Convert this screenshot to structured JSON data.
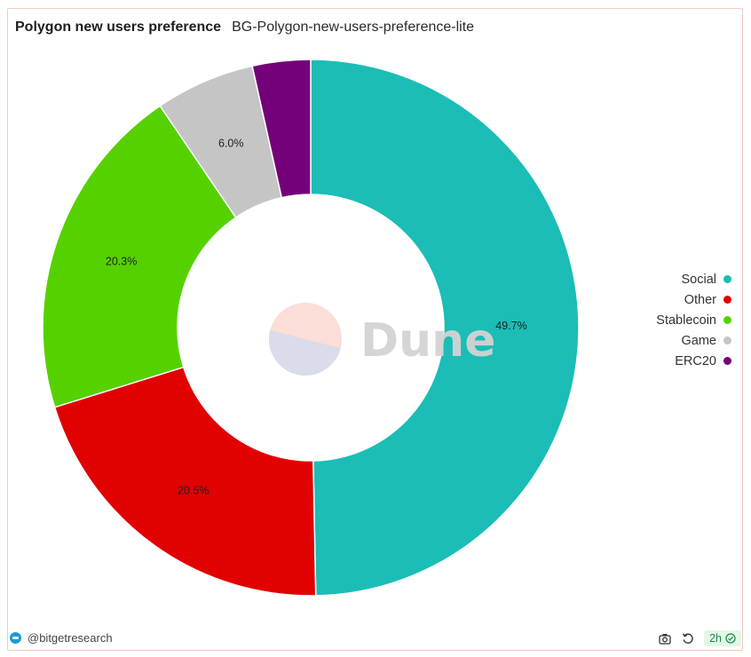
{
  "header": {
    "title": "Polygon new users preference",
    "subtitle": "BG-Polygon-new-users-preference-lite"
  },
  "watermark": {
    "text": "Dune"
  },
  "chart_data": {
    "type": "pie",
    "title": "Polygon new users preference",
    "subtitle": "BG-Polygon-new-users-preference-lite",
    "slices": [
      {
        "name": "Social",
        "value": 49.7,
        "label": "49.7%",
        "color": "#1bbdb6"
      },
      {
        "name": "Other",
        "value": 20.5,
        "label": "20.5%",
        "color": "#e10101"
      },
      {
        "name": "Stablecoin",
        "value": 20.3,
        "label": "20.3%",
        "color": "#56d100"
      },
      {
        "name": "Game",
        "value": 6.0,
        "label": "6.0%",
        "color": "#c5c5c5"
      },
      {
        "name": "ERC20",
        "value": 3.5,
        "label": "",
        "color": "#74007a"
      }
    ],
    "donut": true,
    "legend_position": "right"
  },
  "legend": {
    "items": [
      {
        "label": "Social",
        "color": "#1bbdb6"
      },
      {
        "label": "Other",
        "color": "#e10101"
      },
      {
        "label": "Stablecoin",
        "color": "#56d100"
      },
      {
        "label": "Game",
        "color": "#c5c5c5"
      },
      {
        "label": "ERC20",
        "color": "#74007a"
      }
    ]
  },
  "footer": {
    "author": "@bitgetresearch",
    "refresh_badge": "2h"
  }
}
